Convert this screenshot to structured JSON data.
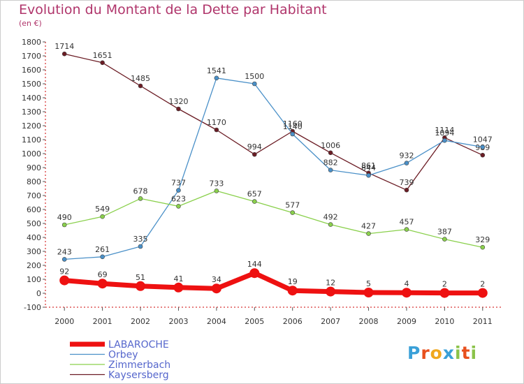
{
  "page": {
    "title": "Evolution du Montant de la Dette par Habitant",
    "subtitle": "(en €)",
    "brand": {
      "letters": [
        "P",
        "r",
        "o",
        "x",
        "i",
        "t",
        "i"
      ],
      "colors": [
        "#3aa0d8",
        "#e8501e",
        "#f0a81e",
        "#3aa0d8",
        "#8bc34a",
        "#e8501e",
        "#8bc34a"
      ]
    }
  },
  "chart_data": {
    "type": "line",
    "title": "Evolution du Montant de la Dette par Habitant",
    "subtitle": "(en €)",
    "xlabel": "",
    "ylabel": "",
    "categories": [
      "2000",
      "2001",
      "2002",
      "2003",
      "2004",
      "2005",
      "2006",
      "2007",
      "2008",
      "2009",
      "2010",
      "2011"
    ],
    "ylim": [
      -100,
      1800
    ],
    "yticks": [
      -100,
      0,
      100,
      200,
      300,
      400,
      500,
      600,
      700,
      800,
      900,
      1000,
      1100,
      1200,
      1300,
      1400,
      1500,
      1600,
      1700,
      1800
    ],
    "grid": false,
    "legend_position": "bottom-left",
    "series": [
      {
        "name": "Kaysersberg",
        "color": "#6b1c24",
        "values": [
          1714,
          1651,
          1485,
          1320,
          1170,
          994,
          1160,
          1006,
          861,
          739,
          1114,
          989
        ]
      },
      {
        "name": "Orbey",
        "color": "#4a90c8",
        "values": [
          243,
          261,
          335,
          737,
          1541,
          1500,
          1140,
          882,
          844,
          932,
          1094,
          1047
        ]
      },
      {
        "name": "Zimmerbach",
        "color": "#8ad04c",
        "values": [
          490,
          549,
          678,
          623,
          733,
          657,
          577,
          492,
          427,
          457,
          387,
          329
        ]
      },
      {
        "name": "LABAROCHE",
        "color": "#ee1111",
        "values": [
          92,
          69,
          51,
          41,
          34,
          144,
          19,
          12,
          5,
          4,
          2,
          2
        ]
      }
    ],
    "legend": [
      {
        "name": "LABAROCHE",
        "color": "#ee1111"
      },
      {
        "name": "Orbey",
        "color": "#4a90c8"
      },
      {
        "name": "Zimmerbach",
        "color": "#8ad04c"
      },
      {
        "name": "Kaysersberg",
        "color": "#6b1c24"
      }
    ]
  }
}
